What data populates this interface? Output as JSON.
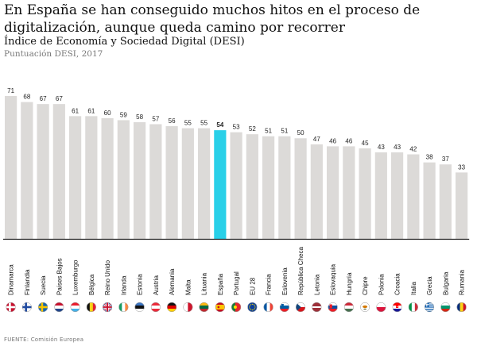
{
  "title": "En España se han conseguido muchos hitos en el proceso de digitalización, aunque queda camino por recorrer",
  "subtitle": "Índice de Economía y Sociedad Digital (DESI)",
  "note": "Puntuación DESI, 2017",
  "source": "FUENTE: Comisión Europea",
  "colors": {
    "bar": "#dcdad8",
    "highlight": "#29d0e8",
    "axis": "#222222"
  },
  "chart_data": {
    "type": "bar",
    "title": "Índice de Economía y Sociedad Digital (DESI)",
    "xlabel": "",
    "ylabel": "",
    "ylim": [
      0,
      71
    ],
    "highlight": "España",
    "grid": false,
    "categories": [
      "Dinamarca",
      "Finlandia",
      "Suecia",
      "Países Bajos",
      "Luxemburgo",
      "Bélgica",
      "Reino Unido",
      "Irlanda",
      "Estonia",
      "Austria",
      "Alemania",
      "Malta",
      "Lituania",
      "España",
      "Portugal",
      "EU 28",
      "Francia",
      "Eslovenia",
      "República Checa",
      "Letonia",
      "Eslovaquia",
      "Hungría",
      "Chipre",
      "Polonia",
      "Croacia",
      "Italia",
      "Grecia",
      "Bulgaria",
      "Rumania"
    ],
    "values": [
      71,
      68,
      67,
      67,
      61,
      61,
      60,
      59,
      58,
      57,
      56,
      55,
      55,
      54,
      53,
      52,
      51,
      51,
      50,
      47,
      46,
      46,
      45,
      43,
      43,
      42,
      38,
      37,
      33
    ],
    "flags": [
      "flag-denmark",
      "flag-finland",
      "flag-sweden",
      "flag-netherlands",
      "flag-luxembourg",
      "flag-belgium",
      "flag-uk",
      "flag-ireland",
      "flag-estonia",
      "flag-austria",
      "flag-germany",
      "flag-malta",
      "flag-lithuania",
      "flag-spain",
      "flag-portugal",
      "flag-eu",
      "flag-france",
      "flag-slovenia",
      "flag-czech",
      "flag-latvia",
      "flag-slovakia",
      "flag-hungary",
      "flag-cyprus",
      "flag-poland",
      "flag-croatia",
      "flag-italy",
      "flag-greece",
      "flag-bulgaria",
      "flag-romania"
    ]
  }
}
